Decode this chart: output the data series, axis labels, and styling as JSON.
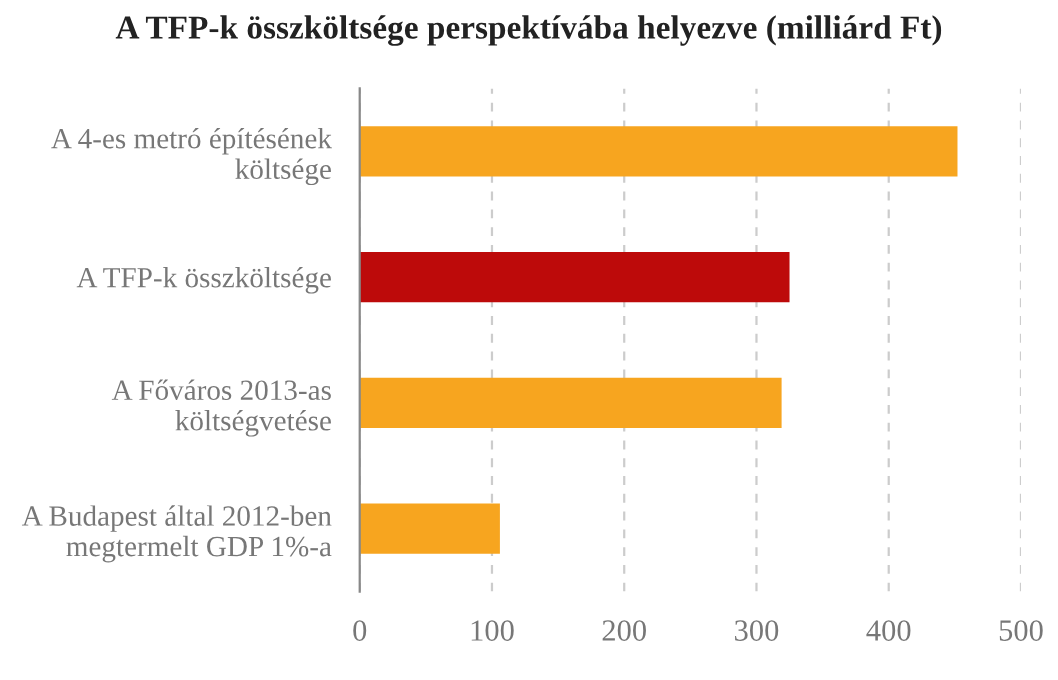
{
  "chart_data": {
    "type": "bar",
    "orientation": "horizontal",
    "title": "A TFP-k összköltsége perspektívába helyezve (milliárd Ft)",
    "categories": [
      "A 4-es metró építésének\nköltsége",
      "A TFP-k összköltsége",
      "A Főváros 2013-as\nköltségvetése",
      "A Budapest által 2012-ben\nmegtermelt GDP 1%-a"
    ],
    "values": [
      452,
      325,
      319,
      106
    ],
    "colors": [
      "#f7a51f",
      "#bd0a0a",
      "#f7a51f",
      "#f7a51f"
    ],
    "xlim": [
      0,
      500
    ],
    "xticks": [
      0,
      100,
      200,
      300,
      400,
      500
    ],
    "grid": "x",
    "legend": false
  }
}
